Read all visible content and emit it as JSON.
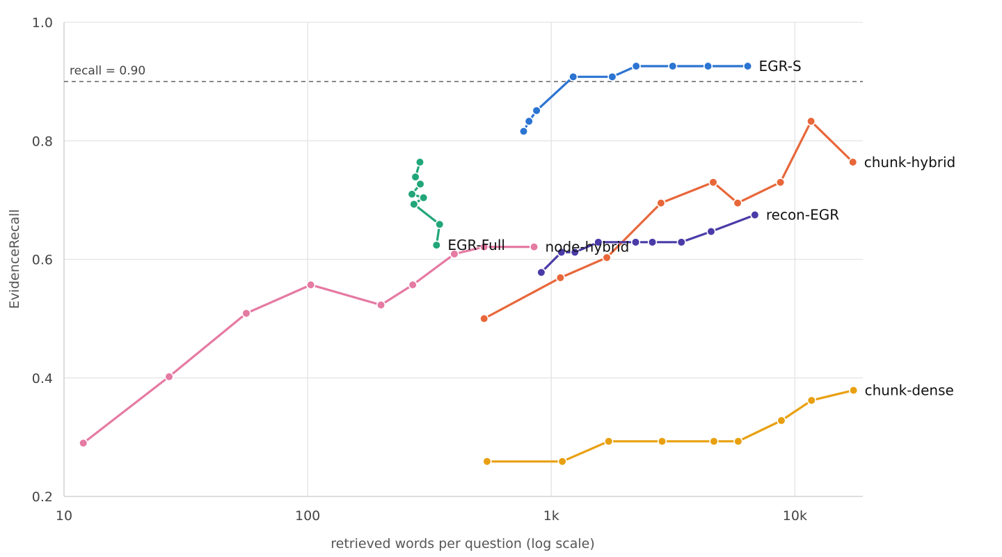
{
  "chart_data": {
    "type": "line",
    "xlabel": "retrieved words per question (log scale)",
    "ylabel": "EvidenceRecall",
    "x_scale": "log",
    "xlim": [
      10,
      19000
    ],
    "ylim": [
      0.2,
      1.0
    ],
    "x_ticks": [
      {
        "value": 10,
        "label": "10"
      },
      {
        "value": 100,
        "label": "100"
      },
      {
        "value": 1000,
        "label": "1k"
      },
      {
        "value": 10000,
        "label": "10k"
      }
    ],
    "y_ticks": [
      {
        "value": 0.2,
        "label": "0.2"
      },
      {
        "value": 0.4,
        "label": "0.4"
      },
      {
        "value": 0.6,
        "label": "0.6"
      },
      {
        "value": 0.8,
        "label": "0.8"
      },
      {
        "value": 1.0,
        "label": "1.0"
      }
    ],
    "grid": true,
    "reference_line": {
      "y": 0.9,
      "label": "recall = 0.90",
      "style": "dashed"
    },
    "series": [
      {
        "name": "EGR-S",
        "color": "#2c74d2",
        "x": [
          770,
          810,
          870,
          1230,
          1780,
          2230,
          3150,
          4400,
          6400
        ],
        "y": [
          0.816,
          0.833,
          0.851,
          0.908,
          0.908,
          0.926,
          0.926,
          0.926,
          0.926
        ]
      },
      {
        "name": "chunk-hybrid",
        "color": "#e8673a",
        "x": [
          530,
          1090,
          1690,
          2820,
          4620,
          5820,
          8720,
          11650,
          17300
        ],
        "y": [
          0.5,
          0.569,
          0.603,
          0.695,
          0.73,
          0.695,
          0.73,
          0.833,
          0.764
        ]
      },
      {
        "name": "recon-EGR",
        "color": "#4a3ba8",
        "x": [
          910,
          1100,
          1250,
          1560,
          2220,
          2600,
          3420,
          4530,
          6850
        ],
        "y": [
          0.578,
          0.612,
          0.612,
          0.629,
          0.629,
          0.629,
          0.629,
          0.647,
          0.675
        ]
      },
      {
        "name": "EGR-Full",
        "color": "#21a67a",
        "x": [
          289,
          277,
          290,
          268,
          299,
          273,
          348,
          338
        ],
        "y": [
          0.764,
          0.739,
          0.727,
          0.71,
          0.704,
          0.693,
          0.659,
          0.624
        ]
      },
      {
        "name": "node-hybrid",
        "color": "#e57aa2",
        "x": [
          12,
          27,
          56,
          103,
          200,
          270,
          400,
          530,
          850
        ],
        "y": [
          0.29,
          0.402,
          0.509,
          0.557,
          0.523,
          0.557,
          0.609,
          0.621,
          0.621
        ]
      },
      {
        "name": "chunk-dense",
        "color": "#e8a010",
        "x": [
          545,
          1110,
          1720,
          2850,
          4650,
          5850,
          8800,
          11700,
          17400
        ],
        "y": [
          0.259,
          0.259,
          0.293,
          0.293,
          0.293,
          0.293,
          0.328,
          0.362,
          0.379
        ]
      }
    ]
  }
}
